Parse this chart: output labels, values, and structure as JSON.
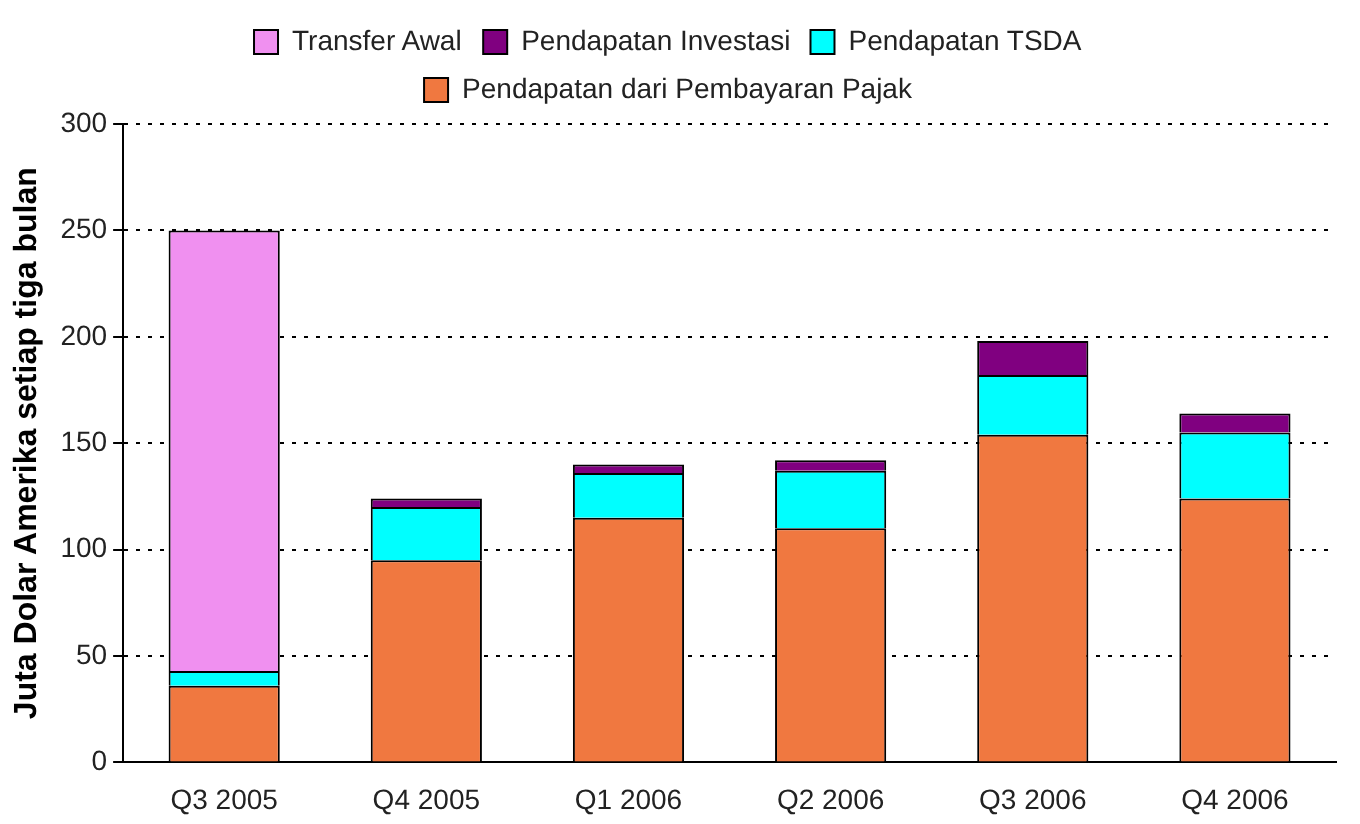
{
  "chart_data": {
    "type": "bar",
    "stacked": true,
    "ylabel": "Juta Dolar Amerika setiap tiga bulan",
    "categories": [
      "Q3 2005",
      "Q4 2005",
      "Q1 2006",
      "Q2 2006",
      "Q3 2006",
      "Q4 2006"
    ],
    "series": [
      {
        "name": "Pendapatan dari Pembayaran Pajak",
        "color": "#f07840",
        "values": [
          36,
          95,
          115,
          110,
          154,
          124
        ]
      },
      {
        "name": "Pendapatan TSDA",
        "color": "#00ffff",
        "values": [
          7,
          25,
          21,
          27,
          28,
          31
        ]
      },
      {
        "name": "Pendapatan Investasi",
        "color": "#800080",
        "values": [
          0,
          4,
          4,
          5,
          16,
          9
        ]
      },
      {
        "name": "Transfer Awal",
        "color": "#f090f0",
        "values": [
          207,
          0,
          0,
          0,
          0,
          0
        ]
      }
    ],
    "ylim": [
      0,
      300
    ],
    "yticks": [
      0,
      50,
      100,
      150,
      200,
      250,
      300
    ],
    "grid": "y",
    "legend": "top"
  }
}
